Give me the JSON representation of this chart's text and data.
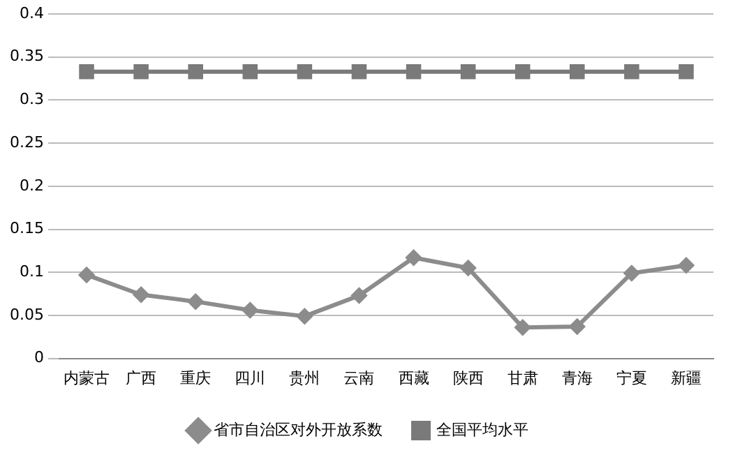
{
  "chart_data": {
    "type": "line",
    "categories": [
      "内蒙古",
      "广西",
      "重庆",
      "四川",
      "贵州",
      "云南",
      "西藏",
      "陕西",
      "甘肃",
      "青海",
      "宁夏",
      "新疆"
    ],
    "series": [
      {
        "name": "省市自治区对外开放系数",
        "color": "#8c8c8c",
        "marker": "diamond",
        "values": [
          0.097,
          0.074,
          0.066,
          0.056,
          0.049,
          0.073,
          0.117,
          0.105,
          0.036,
          0.037,
          0.099,
          0.108
        ]
      },
      {
        "name": "全国平均水平",
        "color": "#7a7a7a",
        "marker": "square",
        "values": [
          0.333,
          0.333,
          0.333,
          0.333,
          0.333,
          0.333,
          0.333,
          0.333,
          0.333,
          0.333,
          0.333,
          0.333
        ]
      }
    ],
    "ylim": [
      0,
      0.4
    ],
    "yticks": [
      0,
      0.05,
      0.1,
      0.15,
      0.2,
      0.25,
      0.3,
      0.35,
      0.4
    ],
    "grid": "y",
    "legend": "bottom",
    "line_style": "solid"
  }
}
